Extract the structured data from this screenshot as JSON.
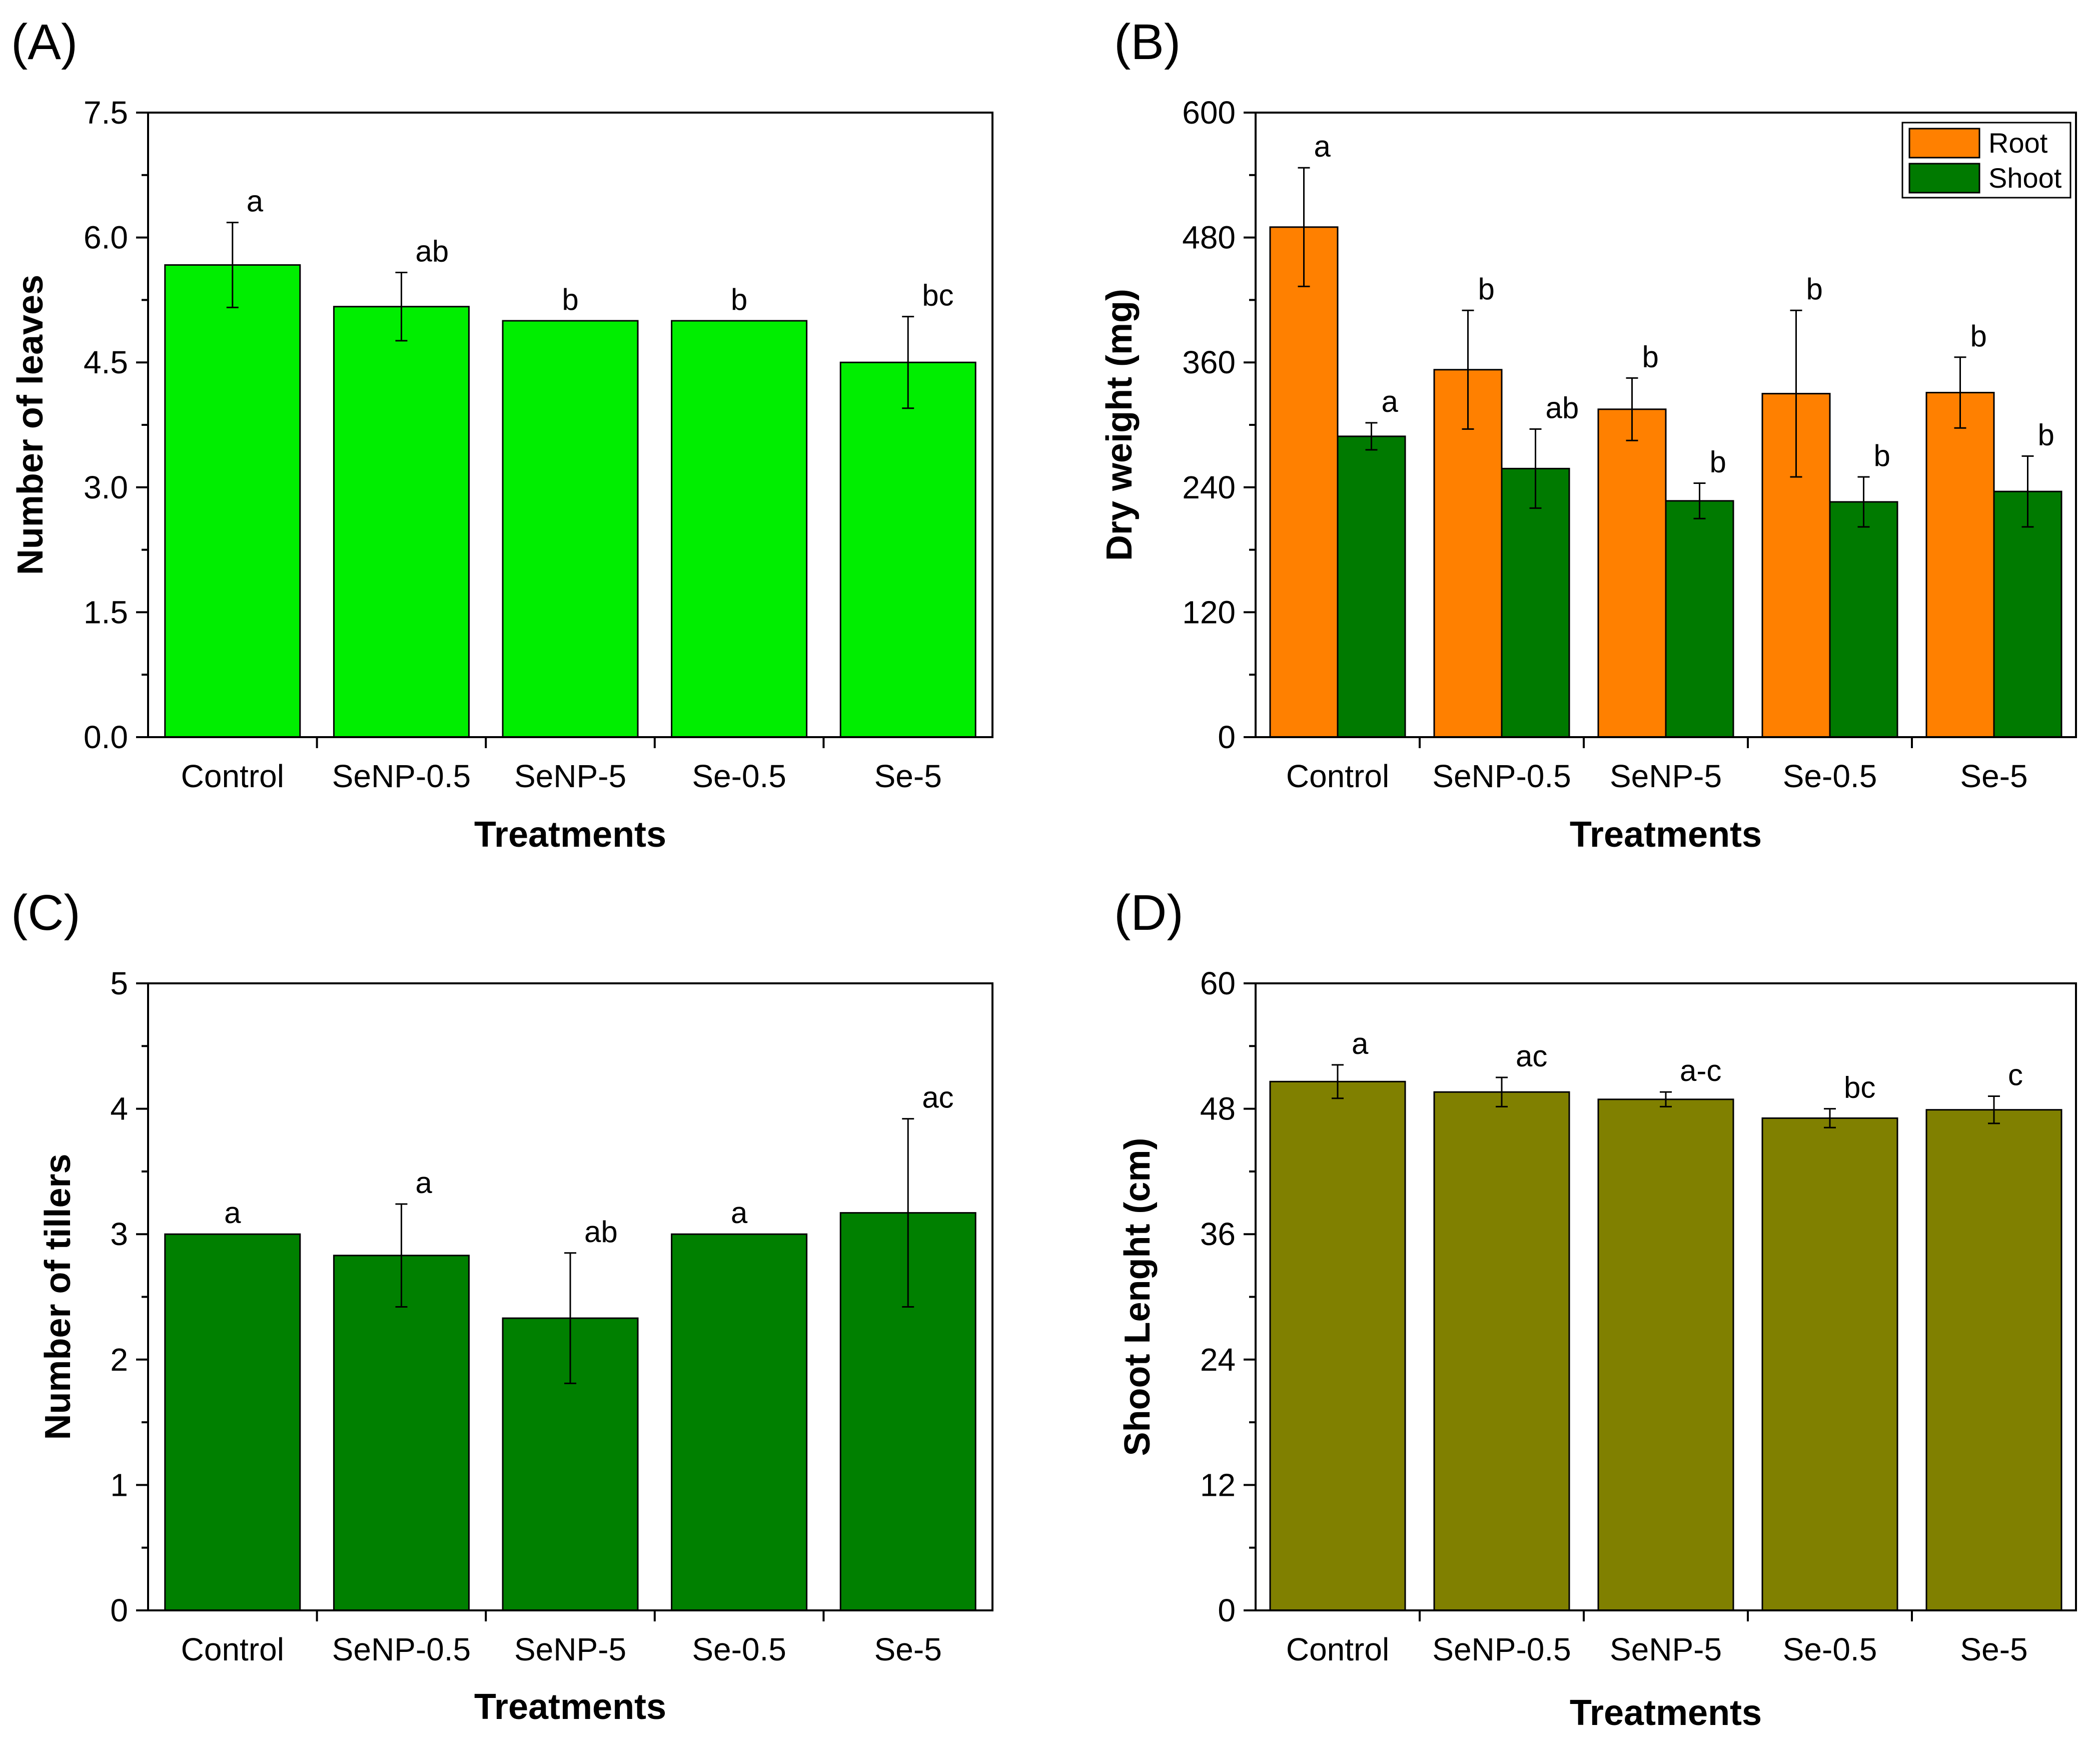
{
  "chart_data": [
    {
      "type": "bar",
      "panel_label": "(A)",
      "categories": [
        "Control",
        "SeNP-0.5",
        "SeNP-5",
        "Se-0.5",
        "Se-5"
      ],
      "series": [
        {
          "name": "Number of leaves",
          "color": "#00ee00",
          "values": [
            5.67,
            5.17,
            5.0,
            5.0,
            4.5
          ],
          "errors": [
            0.51,
            0.41,
            0.0,
            0.0,
            0.55
          ],
          "sig_labels": [
            "a",
            "ab",
            "b",
            "b",
            "bc"
          ]
        }
      ],
      "xlabel": "Treatments",
      "ylabel": "Number of leaves",
      "ylim": [
        0,
        7.5
      ],
      "yticks": [
        "0.0",
        "1.5",
        "3.0",
        "4.5",
        "6.0",
        "7.5"
      ],
      "legend": false
    },
    {
      "type": "bar",
      "panel_label": "(B)",
      "categories": [
        "Control",
        "SeNP-0.5",
        "SeNP-5",
        "Se-0.5",
        "Se-5"
      ],
      "series": [
        {
          "name": "Root",
          "color": "#ff8000",
          "values": [
            490,
            353,
            315,
            330,
            331
          ],
          "errors": [
            57,
            57,
            30,
            80,
            34
          ],
          "sig_labels": [
            "a",
            "b",
            "b",
            "b",
            "b"
          ]
        },
        {
          "name": "Shoot",
          "color": "#007a00",
          "values": [
            289,
            258,
            227,
            226,
            236
          ],
          "errors": [
            13,
            38,
            17,
            24,
            34
          ],
          "sig_labels": [
            "a",
            "ab",
            "b",
            "b",
            "b"
          ]
        }
      ],
      "xlabel": "Treatments",
      "ylabel": "Dry weight (mg)",
      "ylim": [
        0,
        600
      ],
      "yticks": [
        "0",
        "120",
        "240",
        "360",
        "480",
        "600"
      ],
      "legend": true,
      "legend_position": "top-right"
    },
    {
      "type": "bar",
      "panel_label": "(C)",
      "categories": [
        "Control",
        "SeNP-0.5",
        "SeNP-5",
        "Se-0.5",
        "Se-5"
      ],
      "series": [
        {
          "name": "Number of tillers",
          "color": "#008000",
          "values": [
            3.0,
            2.83,
            2.33,
            3.0,
            3.17
          ],
          "errors": [
            0.0,
            0.41,
            0.52,
            0.0,
            0.75
          ],
          "sig_labels": [
            "a",
            "a",
            "ab",
            "a",
            "ac"
          ]
        }
      ],
      "xlabel": "Treatments",
      "ylabel": "Number of tillers",
      "ylim": [
        0,
        5
      ],
      "yticks": [
        "0",
        "1",
        "2",
        "3",
        "4",
        "5"
      ],
      "legend": false
    },
    {
      "type": "bar",
      "panel_label": "(D)",
      "categories": [
        "Control",
        "SeNP-0.5",
        "SeNP-5",
        "Se-0.5",
        "Se-5"
      ],
      "series": [
        {
          "name": "Shoot Lenght",
          "color": "#808000",
          "values": [
            50.6,
            49.6,
            48.9,
            47.1,
            47.9
          ],
          "errors": [
            1.6,
            1.4,
            0.7,
            0.9,
            1.3
          ],
          "sig_labels": [
            "a",
            "ac",
            "a-c",
            "bc",
            "c"
          ]
        }
      ],
      "xlabel": "Treatments",
      "ylabel": "Shoot Lenght (cm)",
      "ylim": [
        0,
        60
      ],
      "yticks": [
        "0",
        "12",
        "24",
        "36",
        "48",
        "60"
      ],
      "legend": false
    }
  ]
}
